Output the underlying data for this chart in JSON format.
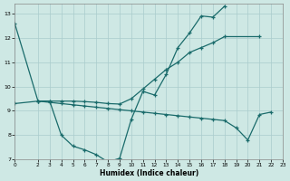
{
  "xlabel": "Humidex (Indice chaleur)",
  "background_color": "#cee8e4",
  "grid_color": "#aacccc",
  "line_color": "#1a6b6b",
  "xlim": [
    0,
    23
  ],
  "ylim": [
    7,
    13.4
  ],
  "xticks": [
    0,
    2,
    3,
    4,
    5,
    6,
    7,
    8,
    9,
    10,
    11,
    12,
    13,
    14,
    15,
    16,
    17,
    18,
    19,
    20,
    21,
    22,
    23
  ],
  "yticks": [
    7,
    8,
    9,
    10,
    11,
    12,
    13
  ],
  "line1_x": [
    0,
    2,
    3,
    4,
    5,
    6,
    7,
    8,
    9,
    10,
    11,
    12,
    13,
    14,
    15,
    16,
    17,
    18
  ],
  "line1_y": [
    12.6,
    9.4,
    9.4,
    8.0,
    7.55,
    7.4,
    7.2,
    6.9,
    7.05,
    8.65,
    9.8,
    9.65,
    10.5,
    11.6,
    12.2,
    12.9,
    12.85,
    13.3
  ],
  "line2_x": [
    0,
    2,
    3,
    4,
    5,
    6,
    7,
    8,
    9,
    10,
    11,
    12,
    13,
    14,
    15,
    16,
    17,
    18,
    21
  ],
  "line2_y": [
    9.3,
    9.4,
    9.4,
    9.4,
    9.4,
    9.38,
    9.35,
    9.3,
    9.28,
    9.5,
    9.9,
    10.3,
    10.7,
    11.0,
    11.4,
    11.6,
    11.8,
    12.05,
    12.05
  ],
  "line3_x": [
    2,
    3,
    4,
    5,
    6,
    7,
    8,
    9,
    10,
    11,
    12,
    13,
    14,
    15,
    16,
    17,
    18,
    19,
    20,
    21,
    22
  ],
  "line3_y": [
    9.4,
    9.35,
    9.3,
    9.25,
    9.2,
    9.15,
    9.1,
    9.05,
    9.0,
    8.95,
    8.9,
    8.85,
    8.8,
    8.75,
    8.7,
    8.65,
    8.6,
    8.3,
    7.8,
    8.85,
    8.95
  ]
}
